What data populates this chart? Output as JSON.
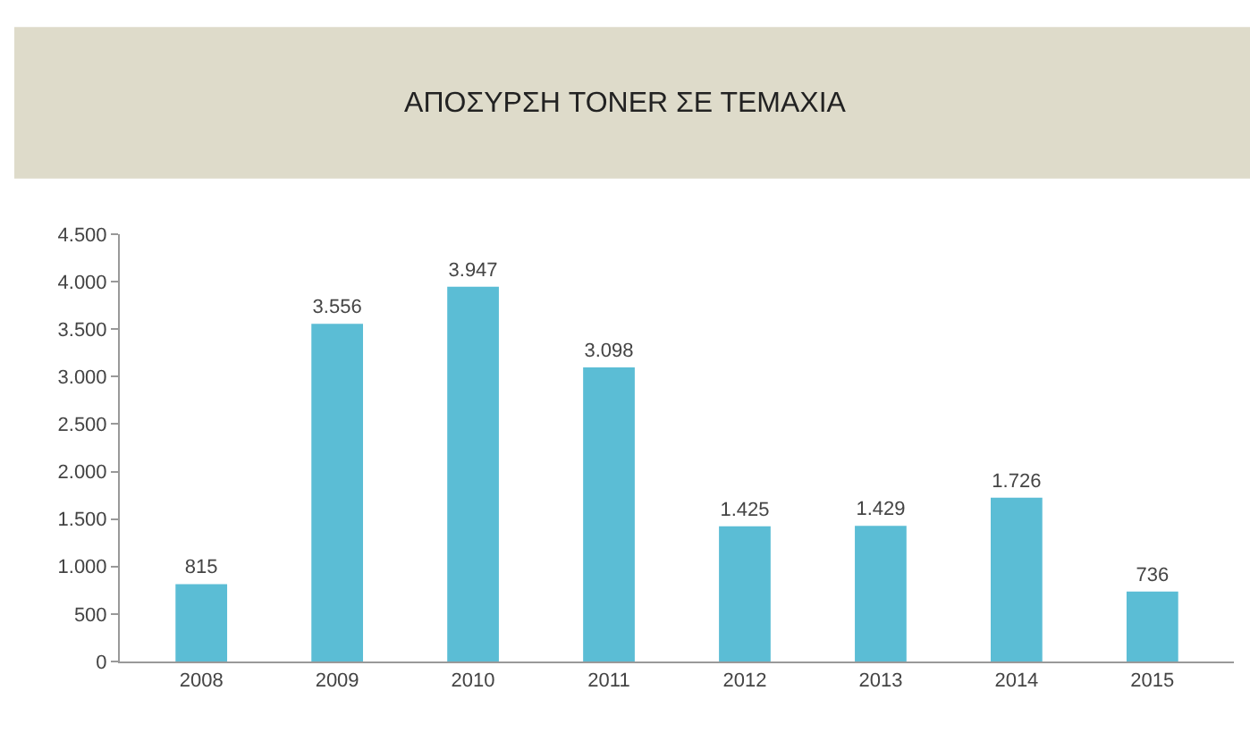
{
  "chart_data": {
    "type": "bar",
    "title": "ΑΠΟΣΥΡΣΗ TONER ΣΕ ΤΕΜΑΧΙΑ",
    "categories": [
      "2008",
      "2009",
      "2010",
      "2011",
      "2012",
      "2013",
      "2014",
      "2015"
    ],
    "values": [
      815,
      3556,
      3947,
      3098,
      1425,
      1429,
      1726,
      736
    ],
    "value_labels": [
      "815",
      "3.556",
      "3.947",
      "3.098",
      "1.425",
      "1.429",
      "1.726",
      "736"
    ],
    "color": "#5bbdd5",
    "ylim": [
      0,
      4500
    ],
    "yticks": [
      0,
      {
        "value": 500,
        "label": "500"
      },
      {
        "value": 1000,
        "label": "1.000"
      },
      {
        "value": 1500,
        "label": "1.500"
      },
      {
        "value": 2000,
        "label": "2.000"
      },
      {
        "value": 2500,
        "label": "2.500"
      },
      {
        "value": 3000,
        "label": "3.000"
      },
      {
        "value": 3500,
        "label": "3.500"
      },
      {
        "value": 4000,
        "label": "4.000"
      },
      {
        "value": 4500,
        "label": "4.500"
      }
    ]
  }
}
